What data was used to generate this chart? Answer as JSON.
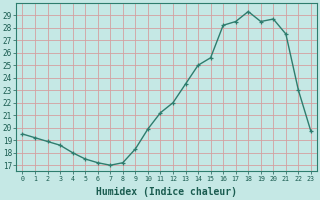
{
  "x": [
    0,
    1,
    2,
    3,
    4,
    5,
    6,
    7,
    8,
    9,
    10,
    11,
    12,
    13,
    14,
    15,
    16,
    17,
    18,
    19,
    20,
    21,
    22,
    23
  ],
  "y": [
    19.5,
    19.2,
    18.9,
    18.6,
    18.0,
    17.5,
    17.2,
    17.0,
    17.2,
    18.3,
    19.9,
    21.2,
    22.0,
    23.5,
    25.0,
    25.6,
    28.2,
    28.5,
    29.3,
    28.5,
    28.7,
    27.5,
    23.0,
    19.7
  ],
  "line_color": "#2e7d6e",
  "marker": "+",
  "marker_size": 3.5,
  "linewidth": 1.0,
  "xlabel": "Humidex (Indice chaleur)",
  "xlabel_fontsize": 7,
  "ylabel_ticks": [
    17,
    18,
    19,
    20,
    21,
    22,
    23,
    24,
    25,
    26,
    27,
    28,
    29
  ],
  "xlim": [
    -0.5,
    23.5
  ],
  "ylim": [
    16.5,
    30
  ],
  "background_color": "#c5e8e5",
  "grid_color": "#d4a0a0"
}
